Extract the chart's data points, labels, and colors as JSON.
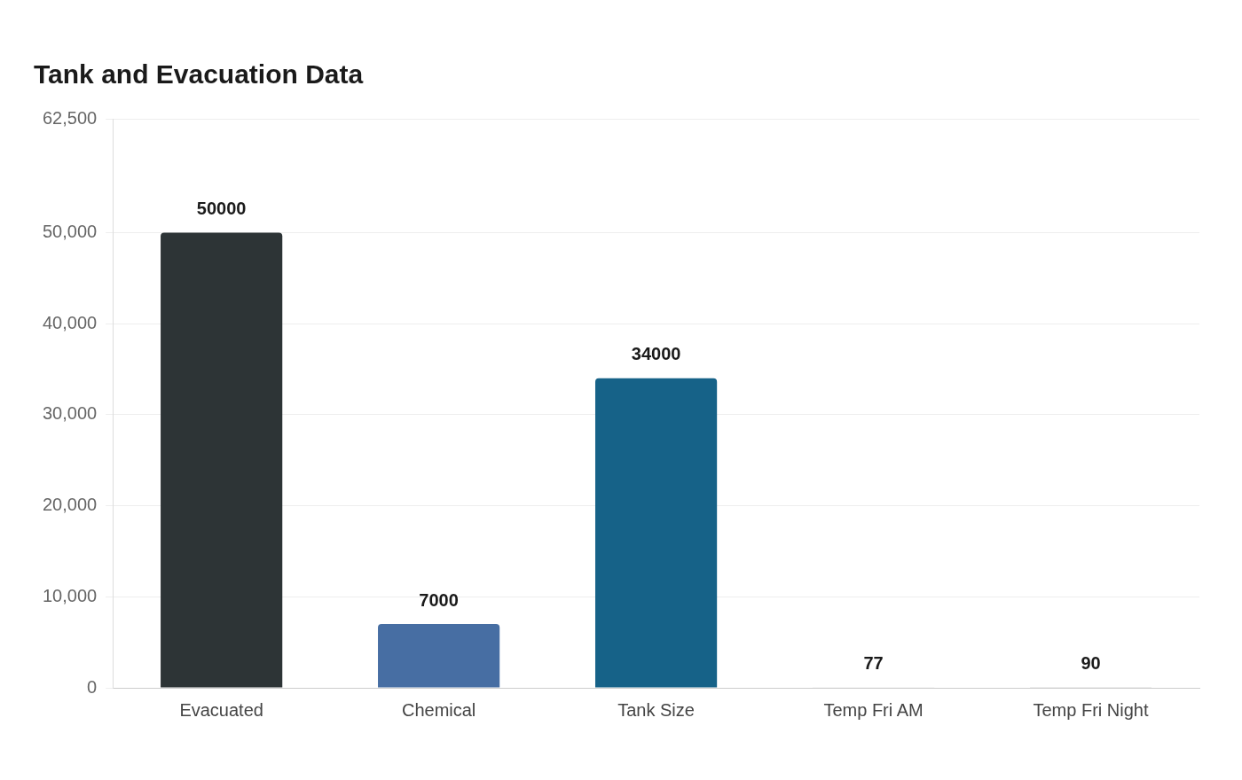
{
  "chart_data": {
    "type": "bar",
    "title": "Tank and Evacuation Data",
    "categories": [
      "Evacuated",
      "Chemical",
      "Tank Size",
      "Temp Fri AM",
      "Temp Fri Night"
    ],
    "values": [
      50000,
      7000,
      34000,
      77,
      90
    ],
    "colors": [
      "#2d3436",
      "#476ea3",
      "#166288",
      "#dedede",
      "#dedede"
    ],
    "ylim": [
      0,
      62500
    ],
    "yticks": [
      {
        "value": 0,
        "label": "0"
      },
      {
        "value": 10000,
        "label": "10,000"
      },
      {
        "value": 20000,
        "label": "20,000"
      },
      {
        "value": 30000,
        "label": "30,000"
      },
      {
        "value": 40000,
        "label": "40,000"
      },
      {
        "value": 50000,
        "label": "50,000"
      },
      {
        "value": 62500,
        "label": "62,500"
      }
    ],
    "grid": "y",
    "data_labels": true,
    "legend": false
  }
}
